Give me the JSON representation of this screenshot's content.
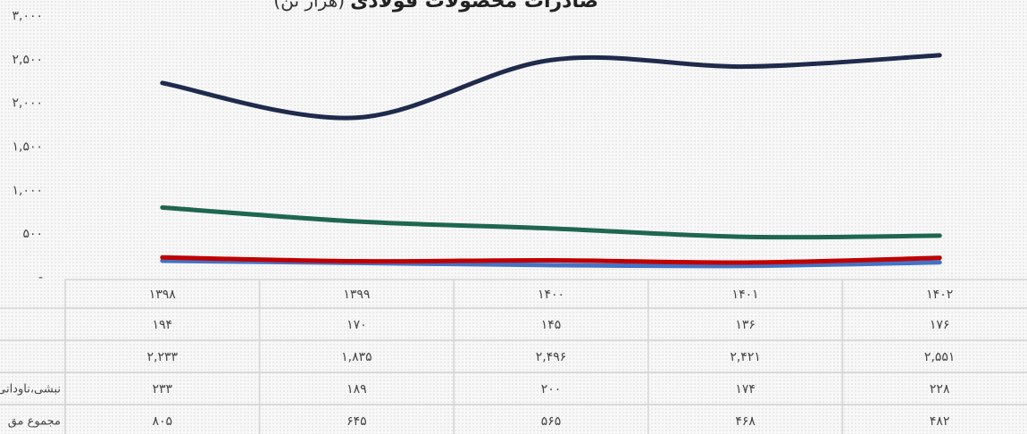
{
  "chart_data": {
    "type": "line",
    "title": "صادرات محصولات فولادی",
    "unit": "(هزار تن)",
    "categories": [
      "۱۳۹۸",
      "۱۳۹۹",
      "۱۴۰۰",
      "۱۴۰۱",
      "۱۴۰۲"
    ],
    "series": [
      {
        "color": "#4472c4",
        "values": [
          194,
          170,
          145,
          136,
          176
        ],
        "value_labels": [
          "۱۹۴",
          "۱۷۰",
          "۱۴۵",
          "۱۳۶",
          "۱۷۶"
        ]
      },
      {
        "color": "#1f2a4d",
        "values": [
          2233,
          1835,
          2496,
          2421,
          2551
        ],
        "value_labels": [
          "۲,۲۳۳",
          "۱,۸۳۵",
          "۲,۴۹۶",
          "۲,۴۲۱",
          "۲,۵۵۱"
        ]
      },
      {
        "name": "نبشی،ناودانی",
        "color": "#c00000",
        "values": [
          233,
          189,
          200,
          174,
          228
        ],
        "value_labels": [
          "۲۳۳",
          "۱۸۹",
          "۲۰۰",
          "۱۷۴",
          "۲۲۸"
        ]
      },
      {
        "name": "مجموع مق",
        "color": "#1e6650",
        "values": [
          805,
          645,
          565,
          468,
          482
        ],
        "value_labels": [
          "۸۰۵",
          "۶۴۵",
          "۵۶۵",
          "۴۶۸",
          "۴۸۲"
        ]
      }
    ],
    "ylim": [
      0,
      3000
    ],
    "yticks": [
      {
        "value": 0,
        "label": "-"
      },
      {
        "value": 500,
        "label": "۵۰۰"
      },
      {
        "value": 1000,
        "label": "۱,۰۰۰"
      },
      {
        "value": 1500,
        "label": "۱,۵۰۰"
      },
      {
        "value": 2000,
        "label": "۲,۰۰۰"
      },
      {
        "value": 2500,
        "label": "۲,۵۰۰"
      },
      {
        "value": 3000,
        "label": "۳,۰۰۰"
      }
    ],
    "grid": false
  }
}
